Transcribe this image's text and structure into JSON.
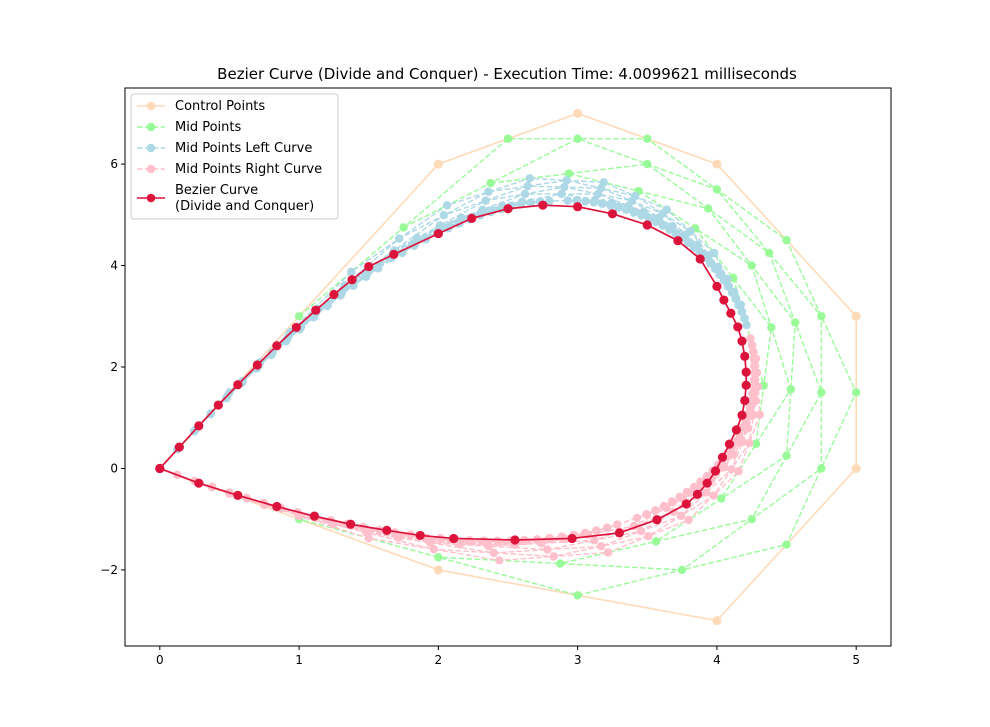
{
  "chart_data": {
    "type": "line",
    "title": "Bezier Curve (Divide and Conquer) - Execution Time: 4.0099621 milliseconds",
    "xlabel": "",
    "ylabel": "",
    "xlim": [
      -0.25,
      5.25
    ],
    "ylim": [
      -3.5,
      7.5
    ],
    "x_ticks": [
      0,
      1,
      2,
      3,
      4,
      5
    ],
    "y_ticks": [
      -2,
      0,
      2,
      4,
      6
    ],
    "x_tick_labels": [
      "0",
      "1",
      "2",
      "3",
      "4",
      "5"
    ],
    "y_tick_labels": [
      "−2",
      "0",
      "2",
      "4",
      "6"
    ],
    "grid": false,
    "legend_position": "upper-left",
    "legend": [
      {
        "label": "Control Points",
        "color": "#ffdab9",
        "style": "solid"
      },
      {
        "label": "Mid Points",
        "color": "#98fb98",
        "style": "dashed"
      },
      {
        "label": "Mid Points Left Curve",
        "color": "#add8e6",
        "style": "dashed"
      },
      {
        "label": "Mid Points Right Curve",
        "color": "#ffc0cb",
        "style": "dashed"
      },
      {
        "label": "Bezier Curve\n(Divide and Conquer)",
        "color": "#dc143c",
        "style": "solid"
      }
    ],
    "control_points": {
      "x": [
        0,
        2,
        3,
        4,
        5,
        5,
        4,
        2,
        0
      ],
      "y": [
        0,
        6,
        7,
        6,
        3,
        0,
        -3,
        -2,
        0
      ]
    },
    "bezier_curve": {
      "x": [
        0,
        0.14,
        0.28,
        0.42,
        0.56,
        0.7,
        0.84,
        0.98,
        1.12,
        1.25,
        1.38,
        1.5,
        1.68,
        2.0,
        2.24,
        2.5,
        2.75,
        3.0,
        3.25,
        3.5,
        3.72,
        3.88,
        4.0,
        4.05,
        4.1,
        4.15,
        4.18,
        4.2,
        4.21,
        4.21,
        4.2,
        4.18,
        4.14,
        4.09,
        4.04,
        3.99,
        3.93,
        3.86,
        3.78,
        3.57,
        3.3,
        2.96,
        2.55,
        2.11,
        1.87,
        1.63,
        1.37,
        1.11,
        0.84,
        0.56,
        0.28,
        0
      ],
      "y": [
        0,
        0.42,
        0.84,
        1.25,
        1.65,
        2.04,
        2.42,
        2.78,
        3.12,
        3.43,
        3.72,
        3.98,
        4.22,
        4.63,
        4.93,
        5.12,
        5.19,
        5.16,
        5.02,
        4.8,
        4.49,
        4.13,
        3.59,
        3.32,
        3.06,
        2.79,
        2.51,
        2.21,
        1.9,
        1.64,
        1.34,
        1.05,
        0.76,
        0.48,
        0.22,
        -0.05,
        -0.29,
        -0.51,
        -0.7,
        -1.01,
        -1.27,
        -1.38,
        -1.41,
        -1.38,
        -1.32,
        -1.22,
        -1.1,
        -0.94,
        -0.75,
        -0.53,
        -0.29,
        0
      ]
    },
    "mid_points_sample": [
      {
        "x": [
          1,
          2,
          3,
          4,
          5,
          4.5,
          3,
          1
        ],
        "y": [
          3,
          6.5,
          6.5,
          4.5,
          1.5,
          -1.5,
          -2.5,
          -1
        ]
      },
      {
        "x": [
          1.5,
          2.5,
          3.5,
          4.5,
          4.75,
          3.75,
          2
        ],
        "y": [
          4.75,
          6.5,
          5.5,
          3,
          0,
          -2,
          -1.75
        ]
      },
      {
        "x": [
          2,
          3,
          4,
          4.625,
          4.25,
          2.875
        ],
        "y": [
          5.625,
          6,
          4.25,
          1.5,
          -1,
          -1.875
        ]
      },
      {
        "x": [
          2.5,
          3.5,
          4.3125,
          4.4375,
          3.5625
        ],
        "y": [
          5.8125,
          5.125,
          2.875,
          0.25,
          -1.4375
        ]
      },
      {
        "x": [
          3.0,
          3.90625,
          4.375,
          4.0
        ],
        "y": [
          5.46875,
          4.0,
          1.5625,
          -0.59375
        ]
      }
    ]
  }
}
